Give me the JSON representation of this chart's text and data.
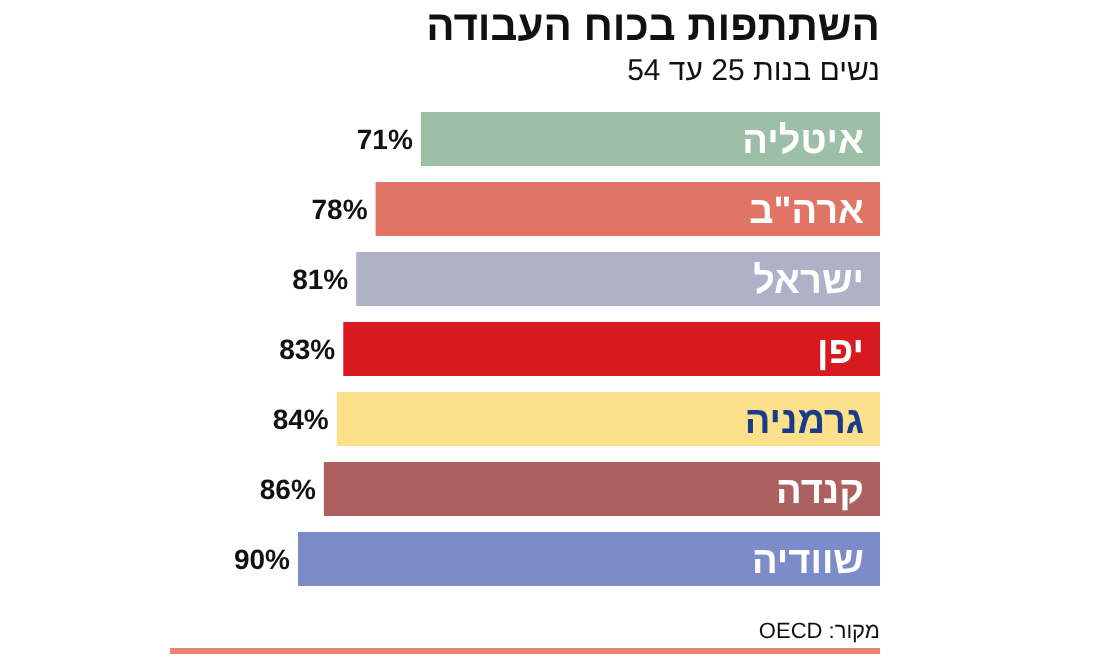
{
  "chart_data": {
    "type": "bar",
    "orientation": "horizontal",
    "title": "השתתפות בכוח העבודה",
    "subtitle": "נשים בנות 25 עד 54",
    "annotations": [
      "מקור: OECD"
    ],
    "categories": [
      "איטליה",
      "ארה\"ב",
      "ישראל",
      "יפן",
      "גרמניה",
      "קנדה",
      "שוודיה"
    ],
    "values": [
      71,
      78,
      81,
      83,
      84,
      86,
      90
    ],
    "value_labels": [
      "71%",
      "78%",
      "81%",
      "83%",
      "84%",
      "86%",
      "90%"
    ],
    "colors": [
      "#9dbfa8",
      "#e07565",
      "#afb1c8",
      "#d81a20",
      "#fde08c",
      "#ad6060",
      "#7b8cc8"
    ]
  }
}
